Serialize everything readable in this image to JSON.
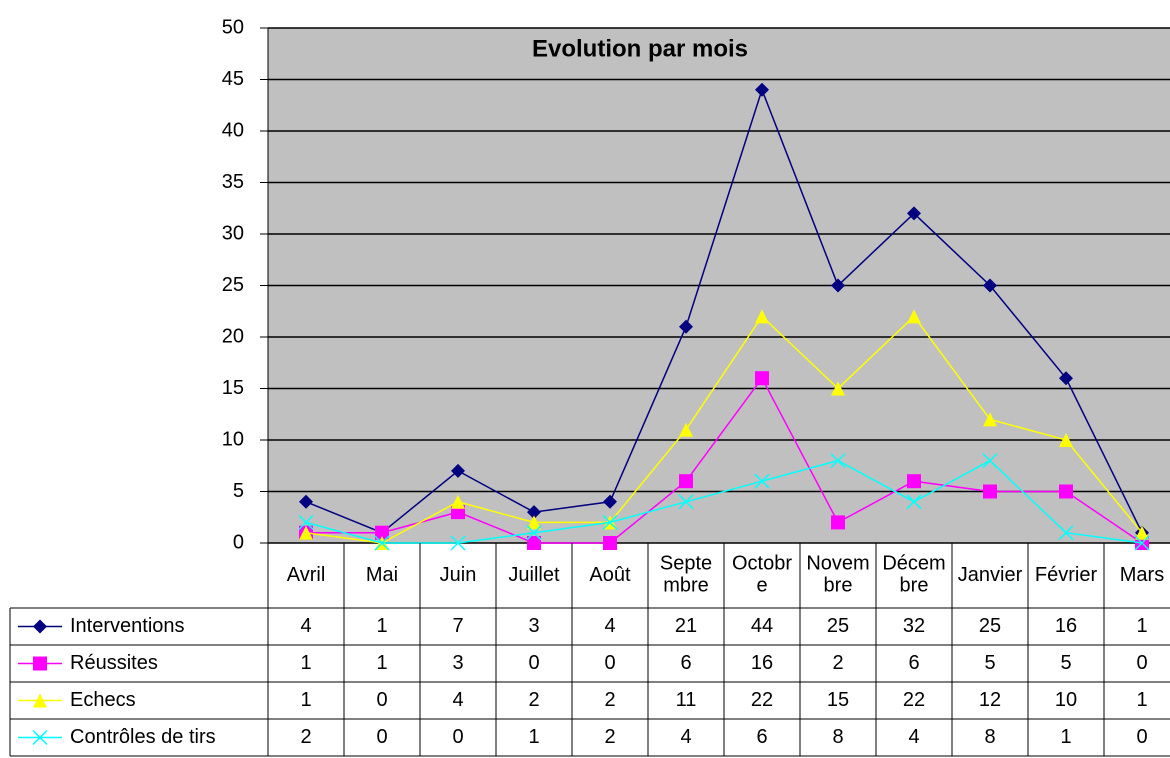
{
  "chart_data": {
    "type": "line",
    "title": "Evolution par mois",
    "categories": [
      "Avril",
      "Mai",
      "Juin",
      "Juillet",
      "Août",
      "Septembre",
      "Octobre",
      "Novembre",
      "Décembre",
      "Janvier",
      "Février",
      "Mars"
    ],
    "series": [
      {
        "name": "Interventions",
        "color": "#000080",
        "marker": "diamond",
        "values": [
          4,
          1,
          7,
          3,
          4,
          21,
          44,
          25,
          32,
          25,
          16,
          1
        ]
      },
      {
        "name": "Réussites",
        "color": "#ff00ff",
        "marker": "square",
        "values": [
          1,
          1,
          3,
          0,
          0,
          6,
          16,
          2,
          6,
          5,
          5,
          0
        ]
      },
      {
        "name": "Echecs",
        "color": "#ffff00",
        "marker": "triangle",
        "values": [
          1,
          0,
          4,
          2,
          2,
          11,
          22,
          15,
          22,
          12,
          10,
          1
        ]
      },
      {
        "name": "Contrôles de tirs",
        "color": "#00ffff",
        "marker": "x",
        "values": [
          2,
          0,
          0,
          1,
          2,
          4,
          6,
          8,
          4,
          8,
          1,
          0
        ]
      }
    ],
    "ylim": [
      0,
      50
    ],
    "yticks": [
      0,
      5,
      10,
      15,
      20,
      25,
      30,
      35,
      40,
      45,
      50
    ],
    "grid": true,
    "data_table": true
  }
}
